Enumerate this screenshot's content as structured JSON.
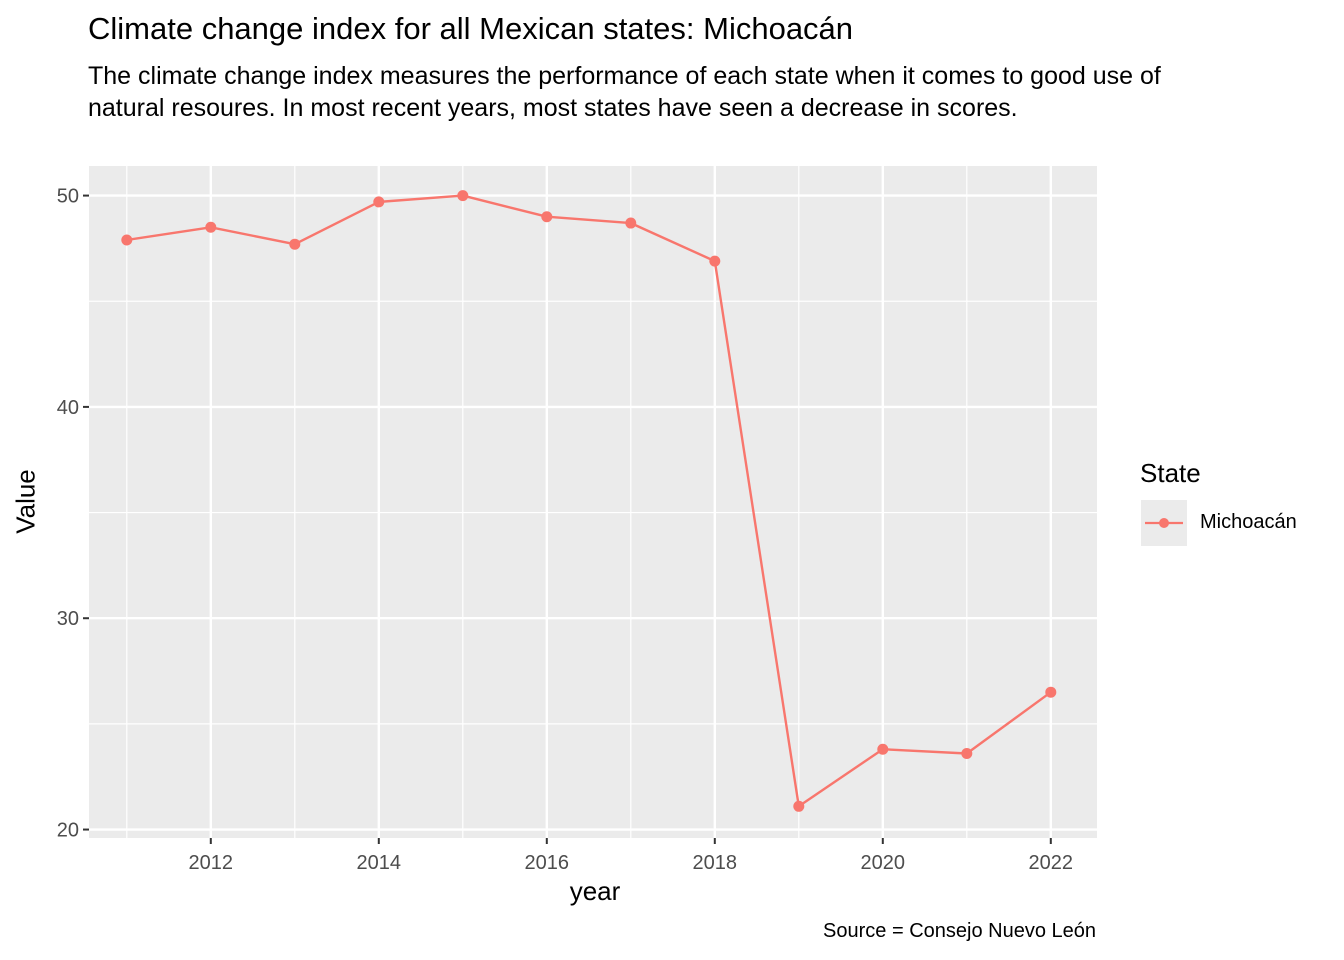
{
  "chart_data": {
    "type": "line",
    "title": "Climate change index for all Mexican states: Michoacán",
    "subtitle": "The climate change index measures the performance of each state when it comes to good use of natural resoures. In most recent years, most states have seen a decrease in scores.",
    "xlabel": "year",
    "ylabel": "Value",
    "caption": "Source = Consejo Nuevo León",
    "legend_title": "State",
    "legend_position": "right",
    "grid": true,
    "xlim": [
      2010.55,
      2022.55
    ],
    "ylim": [
      19.6,
      51.4
    ],
    "x_ticks": [
      2012,
      2014,
      2016,
      2018,
      2020,
      2022
    ],
    "y_ticks": [
      20,
      30,
      40,
      50
    ],
    "color": "#F8766D",
    "series": [
      {
        "name": "Michoacán",
        "x": [
          2011,
          2012,
          2013,
          2014,
          2015,
          2016,
          2017,
          2018,
          2019,
          2020,
          2021,
          2022
        ],
        "values": [
          47.9,
          48.5,
          47.7,
          49.7,
          50.0,
          49.0,
          48.7,
          46.9,
          21.1,
          23.8,
          23.6,
          26.5
        ]
      }
    ]
  }
}
